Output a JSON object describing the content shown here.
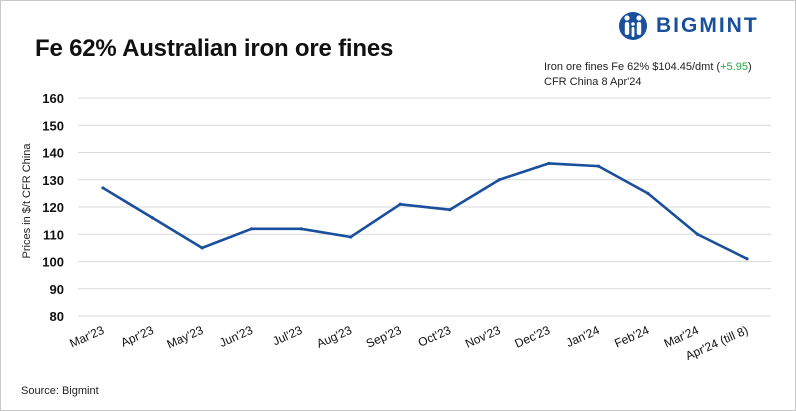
{
  "brand": {
    "name": "BIGMINT",
    "logo_icon": "bigmint-logo-icon",
    "color": "#1a4f9c"
  },
  "header": {
    "title": "Fe 62% Australian iron ore fines",
    "price_prefix": "Iron ore fines Fe 62% $104.45/dmt (",
    "price_change": "+5.95",
    "price_suffix": ")",
    "price_line2": "CFR China 8 Apr'24",
    "change_color": "#2aa845"
  },
  "footer": {
    "source": "Source: Bigmint"
  },
  "chart_data": {
    "type": "line",
    "title": "Fe 62% Australian iron ore fines",
    "xlabel": "",
    "ylabel": "Prices in $/t CFR China",
    "ylim": [
      80,
      160
    ],
    "yticks": [
      80,
      90,
      100,
      110,
      120,
      130,
      140,
      150,
      160
    ],
    "grid": true,
    "categories": [
      "Mar'23",
      "Apr'23",
      "May'23",
      "Jun'23",
      "Jul'23",
      "Aug'23",
      "Sep'23",
      "Oct'23",
      "Nov'23",
      "Dec'23",
      "Jan'24",
      "Feb'24",
      "Mar'24",
      "Apr'24 (till 8)"
    ],
    "series": [
      {
        "name": "Fe 62% Australian iron ore fines",
        "color": "#1a4f9c",
        "values": [
          127,
          116,
          105,
          112,
          112,
          109,
          121,
          119,
          130,
          136,
          135,
          125,
          110,
          101
        ]
      }
    ]
  }
}
